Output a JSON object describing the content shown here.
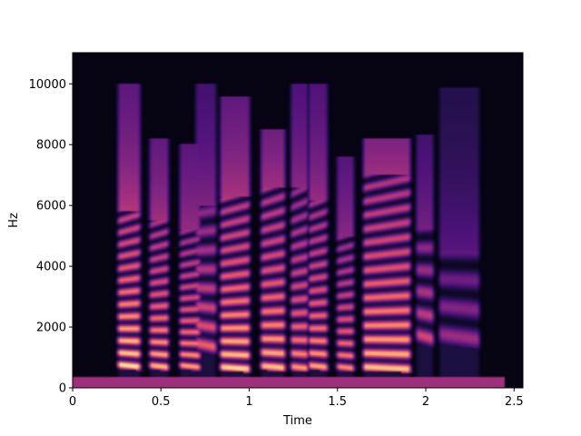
{
  "chart_data": {
    "type": "heatmap",
    "subtype": "spectrogram",
    "colormap": "magma",
    "title": "",
    "xlabel": "Time",
    "ylabel": "Hz",
    "xlim": [
      0,
      2.55
    ],
    "ylim": [
      0,
      11025
    ],
    "x_ticks": [
      0,
      0.5,
      1,
      1.5,
      2,
      2.5
    ],
    "x_tick_labels": [
      "0",
      "0.5",
      "1",
      "1.5",
      "2",
      "2.5"
    ],
    "y_ticks": [
      0,
      2000,
      4000,
      6000,
      8000,
      10000
    ],
    "y_tick_labels": [
      "0",
      "2000",
      "4000",
      "6000",
      "8000",
      "10000"
    ],
    "grid": false,
    "legend": "none",
    "background_color": "#000004",
    "low_band": {
      "t0": 0.0,
      "t1": 2.45,
      "f_max": 350,
      "level": 0.45
    },
    "segments": [
      {
        "t0": 0.24,
        "t1": 0.4,
        "f0": 780,
        "f_top": 10000,
        "ridge_top": 5800,
        "spacing": 390,
        "energy": 1.0
      },
      {
        "t0": 0.42,
        "t1": 0.56,
        "f0": 760,
        "f_top": 8200,
        "ridge_top": 5500,
        "spacing": 380,
        "energy": 0.9
      },
      {
        "t0": 0.59,
        "t1": 0.74,
        "f0": 760,
        "f_top": 8000,
        "ridge_top": 5200,
        "spacing": 360,
        "energy": 0.85
      },
      {
        "t0": 0.68,
        "t1": 0.83,
        "f0": 1500,
        "f_top": 10000,
        "ridge_top": 6000,
        "spacing": 600,
        "energy": 0.75
      },
      {
        "t0": 0.82,
        "t1": 1.02,
        "f0": 700,
        "f_top": 9600,
        "ridge_top": 6300,
        "spacing": 420,
        "energy": 0.95
      },
      {
        "t0": 1.05,
        "t1": 1.22,
        "f0": 740,
        "f_top": 8500,
        "ridge_top": 6600,
        "spacing": 440,
        "energy": 0.9
      },
      {
        "t0": 1.22,
        "t1": 1.35,
        "f0": 720,
        "f_top": 10000,
        "ridge_top": 6600,
        "spacing": 430,
        "energy": 0.8
      },
      {
        "t0": 1.32,
        "t1": 1.46,
        "f0": 760,
        "f_top": 10000,
        "ridge_top": 6200,
        "spacing": 400,
        "energy": 0.85
      },
      {
        "t0": 1.48,
        "t1": 1.61,
        "f0": 720,
        "f_top": 7600,
        "ridge_top": 5000,
        "spacing": 380,
        "energy": 0.8
      },
      {
        "t0": 1.63,
        "t1": 1.93,
        "f0": 700,
        "f_top": 8200,
        "ridge_top": 7000,
        "spacing": 450,
        "energy": 0.9
      },
      {
        "t0": 1.93,
        "t1": 2.06,
        "f0": 1800,
        "f_top": 8300,
        "ridge_top": 5200,
        "spacing": 700,
        "energy": 0.7
      },
      {
        "t0": 2.06,
        "t1": 2.32,
        "f0": 1800,
        "f_top": 9900,
        "ridge_top": 4500,
        "spacing": 900,
        "energy": 0.55
      }
    ]
  }
}
